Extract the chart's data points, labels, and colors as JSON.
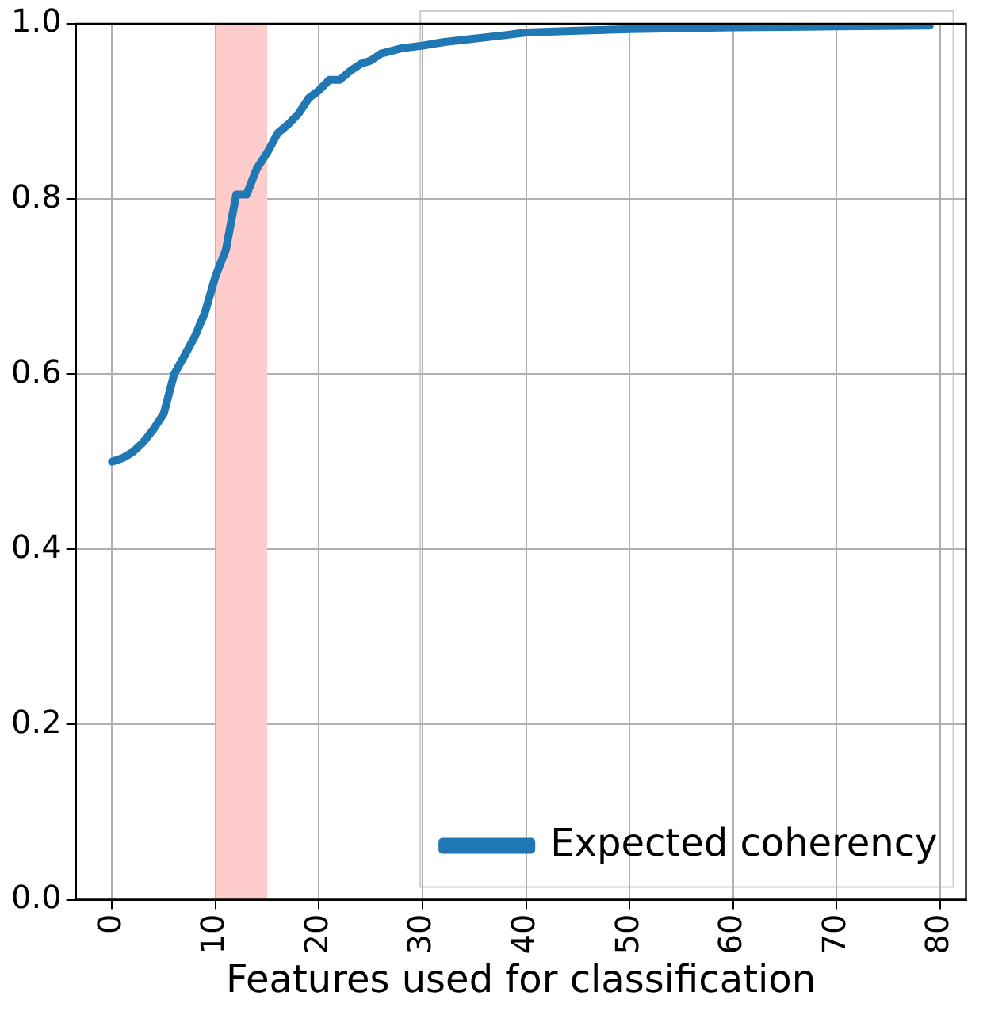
{
  "chart_data": {
    "type": "line",
    "xlabel": "Features used for classification",
    "x": [
      0,
      1,
      2,
      3,
      4,
      5,
      6,
      7,
      8,
      9,
      10,
      11,
      12,
      13,
      14,
      15,
      16,
      17,
      18,
      19,
      20,
      21,
      22,
      23,
      24,
      25,
      26,
      28,
      30,
      32,
      35,
      38,
      40,
      45,
      50,
      60,
      70,
      79
    ],
    "series": [
      {
        "name": "Expected coherency",
        "color": "#1f77b4",
        "values": [
          0.5,
          0.504,
          0.511,
          0.522,
          0.537,
          0.555,
          0.6,
          0.621,
          0.643,
          0.671,
          0.712,
          0.742,
          0.805,
          0.805,
          0.835,
          0.853,
          0.875,
          0.885,
          0.897,
          0.915,
          0.924,
          0.936,
          0.936,
          0.946,
          0.954,
          0.958,
          0.966,
          0.972,
          0.975,
          0.979,
          0.983,
          0.987,
          0.99,
          0.992,
          0.994,
          0.996,
          0.997,
          0.998
        ]
      }
    ],
    "xlim": [
      -3.5,
      82.5
    ],
    "xticks": [
      0,
      10,
      20,
      30,
      40,
      50,
      60,
      70,
      80
    ],
    "ylim": [
      0,
      1
    ],
    "yticks": [
      {
        "value": 0,
        "label": "0.0"
      },
      {
        "value": 0.2,
        "label": "0.2"
      },
      {
        "value": 0.4,
        "label": "0.4"
      },
      {
        "value": 0.6,
        "label": "0.6"
      },
      {
        "value": 0.8,
        "label": "0.8"
      },
      {
        "value": 1,
        "label": "1.0"
      }
    ],
    "bands": [
      {
        "axis": "x",
        "from": 10,
        "to": 15,
        "color": "#ffcccc"
      }
    ],
    "grid": true,
    "legend": "bottom right",
    "marker": "none",
    "line_style": "solid"
  }
}
